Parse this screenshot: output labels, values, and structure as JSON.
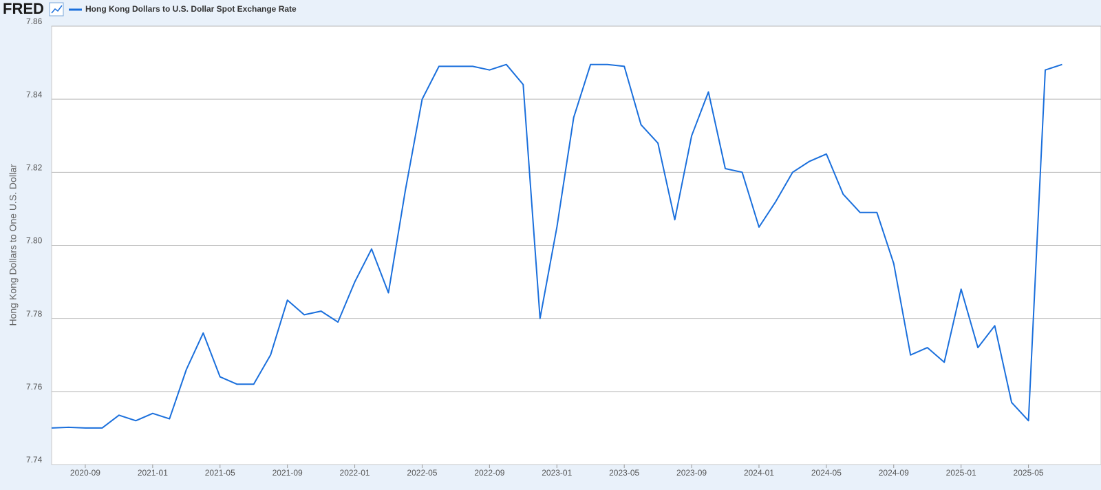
{
  "logo": "FRED",
  "chart_data": {
    "type": "line",
    "y_label": "Hong Kong Dollars to One U.S. Dollar",
    "x": [
      "2020-07",
      "2020-08",
      "2020-09",
      "2020-10",
      "2020-11",
      "2020-12",
      "2021-01",
      "2021-02",
      "2021-03",
      "2021-04",
      "2021-05",
      "2021-06",
      "2021-07",
      "2021-08",
      "2021-09",
      "2021-10",
      "2021-11",
      "2021-12",
      "2022-01",
      "2022-02",
      "2022-03",
      "2022-04",
      "2022-05",
      "2022-06",
      "2022-07",
      "2022-08",
      "2022-09",
      "2022-10",
      "2022-11",
      "2022-12",
      "2023-01",
      "2023-02",
      "2023-03",
      "2023-04",
      "2023-05",
      "2023-06",
      "2023-07",
      "2023-08",
      "2023-09",
      "2023-10",
      "2023-11",
      "2023-12",
      "2024-01",
      "2024-02",
      "2024-03",
      "2024-04",
      "2024-05",
      "2024-06",
      "2024-07",
      "2024-08",
      "2024-09",
      "2024-10",
      "2024-11",
      "2024-12",
      "2025-01",
      "2025-02",
      "2025-03",
      "2025-04",
      "2025-05",
      "2025-06",
      "2025-07"
    ],
    "series": [
      {
        "name": "Hong Kong Dollars to U.S. Dollar Spot Exchange Rate",
        "color": "#1a6fdc",
        "values": [
          7.75,
          7.7502,
          7.75,
          7.75,
          7.7535,
          7.752,
          7.754,
          7.7525,
          7.766,
          7.776,
          7.764,
          7.762,
          7.762,
          7.77,
          7.785,
          7.781,
          7.782,
          7.779,
          7.79,
          7.799,
          7.787,
          7.815,
          7.84,
          7.849,
          7.849,
          7.849,
          7.848,
          7.8495,
          7.844,
          7.78,
          7.805,
          7.835,
          7.8495,
          7.8495,
          7.849,
          7.833,
          7.828,
          7.807,
          7.83,
          7.842,
          7.821,
          7.82,
          7.805,
          7.812,
          7.82,
          7.823,
          7.825,
          7.814,
          7.809,
          7.809,
          7.795,
          7.77,
          7.772,
          7.768,
          7.788,
          7.772,
          7.778,
          7.757,
          7.752,
          7.848,
          7.8495
        ]
      }
    ],
    "xlim": [
      "2020-07",
      "2025-08"
    ],
    "xticks": [
      "2020-09",
      "2021-01",
      "2021-05",
      "2021-09",
      "2022-01",
      "2022-05",
      "2022-09",
      "2023-01",
      "2023-05",
      "2023-09",
      "2024-01",
      "2024-05",
      "2024-09",
      "2025-01",
      "2025-05"
    ],
    "ylim": [
      7.74,
      7.86
    ],
    "yticks": [
      7.74,
      7.76,
      7.78,
      {
        "value": 7.8,
        "label": "7.80"
      },
      7.82,
      7.84,
      7.86
    ],
    "grid": true
  }
}
